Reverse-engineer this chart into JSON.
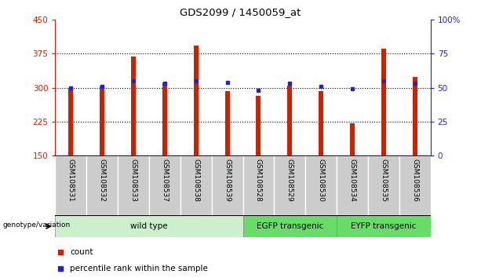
{
  "title": "GDS2099 / 1450059_at",
  "samples": [
    "GSM108531",
    "GSM108532",
    "GSM108533",
    "GSM108537",
    "GSM108538",
    "GSM108539",
    "GSM108528",
    "GSM108529",
    "GSM108530",
    "GSM108534",
    "GSM108535",
    "GSM108536"
  ],
  "counts": [
    300,
    303,
    368,
    312,
    392,
    293,
    282,
    305,
    293,
    221,
    385,
    323
  ],
  "percentiles": [
    50,
    51,
    55,
    53,
    55,
    54,
    48,
    53,
    51,
    49,
    55,
    53
  ],
  "ylim_left": [
    150,
    450
  ],
  "ylim_right": [
    0,
    100
  ],
  "yticks_left": [
    150,
    225,
    300,
    375,
    450
  ],
  "yticks_right": [
    0,
    25,
    50,
    75,
    100
  ],
  "bar_color": "#cc2200",
  "dot_color": "#2222cc",
  "bar_width": 0.15,
  "grid_yticks": [
    225,
    300,
    375
  ],
  "group_ranges": [
    [
      0,
      6
    ],
    [
      6,
      9
    ],
    [
      9,
      12
    ]
  ],
  "group_labels": [
    "wild type",
    "EGFP transgenic",
    "EYFP transgenic"
  ],
  "group_colors": [
    "#ccf0cc",
    "#66dd66",
    "#66dd66"
  ],
  "genotype_label": "genotype/variation",
  "legend_bar_label": "count",
  "legend_dot_label": "percentile rank within the sample",
  "sample_box_color": "#cccccc",
  "left_axis_color": "#cc2200",
  "right_axis_color": "#2222cc"
}
